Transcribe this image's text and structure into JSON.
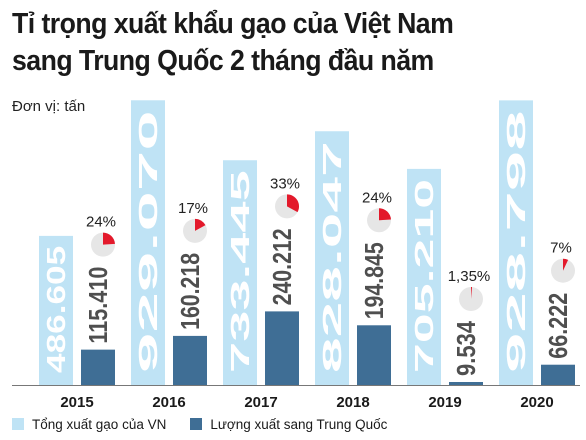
{
  "title_line1": "Tỉ trọng xuất khẩu gạo của Việt Nam",
  "title_line2": "sang Trung Quốc 2 tháng đầu năm",
  "unit": "Đơn vị: tấn",
  "colors": {
    "total": "#bfe3f5",
    "china": "#3f6e95",
    "pie_bg": "#e6e6e6",
    "pie_fill": "#e3192b"
  },
  "chart_data": {
    "type": "bar",
    "categories": [
      "2015",
      "2016",
      "2017",
      "2018",
      "2019",
      "2020"
    ],
    "series": [
      {
        "name": "Tổng xuất gạo của VN",
        "values": [
          486605,
          929070,
          733445,
          828047,
          705210,
          928798
        ],
        "labels": [
          "486.605",
          "929.070",
          "733.445",
          "828.047",
          "705.210",
          "928.798"
        ]
      },
      {
        "name": "Lượng xuất sang Trung Quốc",
        "values": [
          115410,
          160218,
          240212,
          194845,
          9534,
          66222
        ],
        "labels": [
          "115.410",
          "160.218",
          "240.212",
          "194.845",
          "9.534",
          "66.222"
        ]
      }
    ],
    "shares": [
      0.24,
      0.17,
      0.33,
      0.24,
      0.0135,
      0.07
    ],
    "share_labels": [
      "24%",
      "17%",
      "33%",
      "24%",
      "1,35%",
      "7%"
    ],
    "legend_position": "bottom-left"
  }
}
